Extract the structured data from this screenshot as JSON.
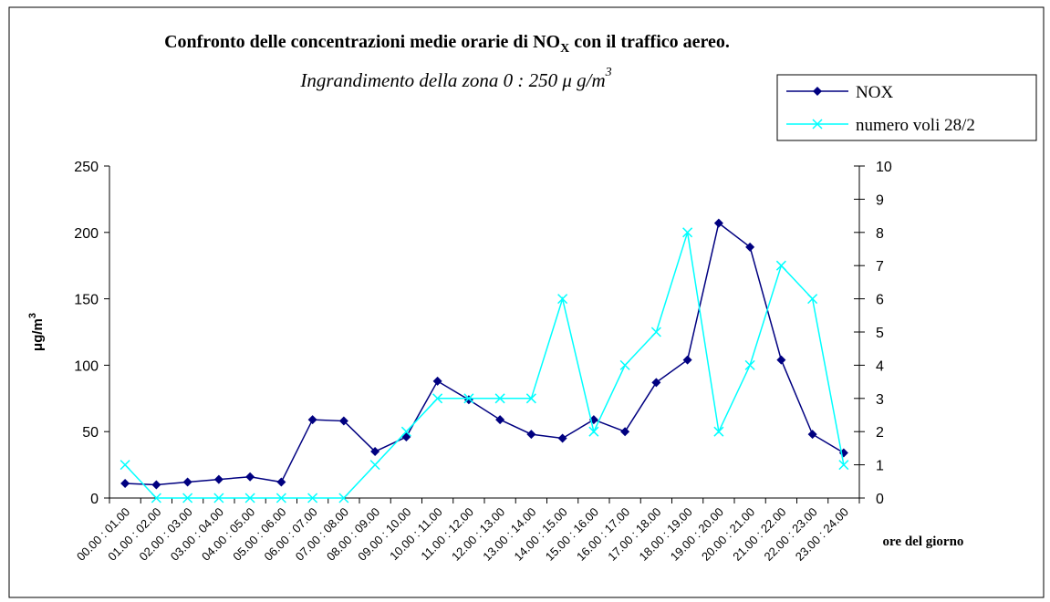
{
  "chart_data": {
    "type": "line",
    "title": [
      "Confronto delle concentrazioni medie orarie di NO",
      "X",
      " con il traffico aereo."
    ],
    "subtitle": [
      "Ingrandimento della zona 0 : 250  μ g/m",
      "3"
    ],
    "ylabel": [
      "μg/m",
      "3"
    ],
    "xlabel": "ore del giorno",
    "categories": [
      "00.00 : 01.00",
      "01.00 : 02.00",
      "02.00 : 03.00",
      "03.00 : 04.00",
      "04.00 : 05.00",
      "05.00 : 06.00",
      "06.00 : 07.00",
      "07.00 : 08.00",
      "08.00 : 09.00",
      "09.00 : 10.00",
      "10.00 : 11.00",
      "11.00 : 12.00",
      "12.00 : 13.00",
      "13.00 : 14.00",
      "14.00 : 15.00",
      "15.00 : 16.00",
      "16.00 : 17.00",
      "17.00 : 18.00",
      "18.00 : 19.00",
      "19.00 : 20.00",
      "20.00 : 21.00",
      "21.00 : 22.00",
      "22.00 : 23.00",
      "23.00 : 24.00"
    ],
    "series": [
      {
        "name": "NOX",
        "color": "#000080",
        "marker": "diamond",
        "values": [
          11,
          10,
          12,
          14,
          16,
          12,
          59,
          58,
          35,
          46,
          88,
          74,
          59,
          48,
          45,
          59,
          50,
          87,
          104,
          207,
          189,
          104,
          48,
          34
        ]
      },
      {
        "name": "numero voli 28/2",
        "color": "#00ffff",
        "marker": "x",
        "axis": "y2",
        "values": [
          1,
          0,
          0,
          0,
          0,
          0,
          0,
          0,
          1,
          2,
          3,
          3,
          3,
          3,
          6,
          2,
          4,
          5,
          8,
          2,
          4,
          7,
          6,
          1
        ]
      }
    ],
    "ylim": [
      0,
      250
    ],
    "yticks": [
      0,
      50,
      100,
      150,
      200,
      250
    ],
    "y2lim": [
      0,
      10
    ],
    "y2ticks": [
      0,
      1,
      2,
      3,
      4,
      5,
      6,
      7,
      8,
      9,
      10
    ],
    "legend": "top-right"
  }
}
